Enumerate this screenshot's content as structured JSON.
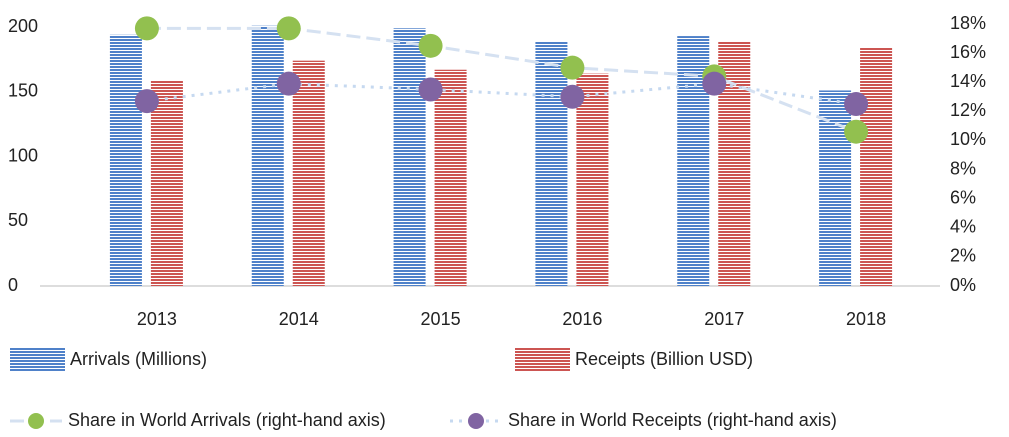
{
  "chart_data": {
    "type": "bar-line",
    "categories": [
      "2013",
      "2014",
      "2015",
      "2016",
      "2017",
      "2018"
    ],
    "ylim": [
      0,
      200
    ],
    "yticks": [
      0,
      50,
      100,
      150,
      200
    ],
    "y2lim": [
      0,
      18
    ],
    "y2ticks": [
      {
        "value": 0,
        "label": "0%"
      },
      {
        "value": 2,
        "label": "2%"
      },
      {
        "value": 4,
        "label": "4%"
      },
      {
        "value": 6,
        "label": "6%"
      },
      {
        "value": 8,
        "label": "8%"
      },
      {
        "value": 10,
        "label": "10%"
      },
      {
        "value": 12,
        "label": "12%"
      },
      {
        "value": 14,
        "label": "14%"
      },
      {
        "value": 16,
        "label": "16%"
      },
      {
        "value": 18,
        "label": "18%"
      }
    ],
    "series": [
      {
        "name": "Arrivals (Millions)",
        "type": "bar",
        "color": "#4f81c9",
        "values": [
          194,
          201,
          199,
          189,
          193,
          151
        ]
      },
      {
        "name": "Receipts (Billion USD)",
        "type": "bar",
        "color": "#cc5552",
        "values": [
          159,
          174,
          167,
          164,
          189,
          184
        ]
      },
      {
        "name": "Share in World Arrivals (right-hand axis)",
        "type": "line",
        "axis": "y2",
        "color": "#d5e1f1",
        "marker_color": "#92c04f",
        "dash": "dashed",
        "values": [
          17.7,
          17.7,
          16.5,
          15.0,
          14.4,
          10.6
        ]
      },
      {
        "name": "Share in World Receipts (right-hand axis)",
        "type": "line",
        "axis": "y2",
        "color": "#c6d9f0",
        "marker_color": "#8064a2",
        "dash": "dotted",
        "values": [
          12.7,
          13.9,
          13.5,
          13.0,
          13.9,
          12.5
        ]
      }
    ]
  }
}
